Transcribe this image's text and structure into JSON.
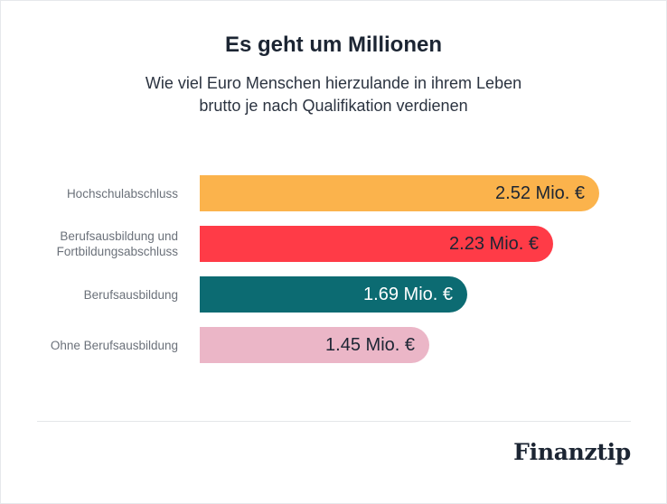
{
  "title": "Es geht um Millionen",
  "subtitle_line1": "Wie viel Euro Menschen hierzulande in ihrem Leben",
  "subtitle_line2": "brutto je nach Qualifikation verdienen",
  "brand": "Finanztip",
  "colors": {
    "hochschul": "#fbb34c",
    "berufsausbildung_fortbildung": "#ff3b47",
    "berufsausbildung": "#0c6b72",
    "ohne": "#ebb6c7",
    "value_dark": "#1c2533",
    "value_light": "#ffffff"
  },
  "chart_data": {
    "type": "bar",
    "orientation": "horizontal",
    "title": "Es geht um Millionen",
    "subtitle": "Wie viel Euro Menschen hierzulande in ihrem Leben brutto je nach Qualifikation verdienen",
    "categories": [
      [
        "Hochschulabschluss"
      ],
      [
        "Berufsausbildung und",
        "Fortbildungsabschluss"
      ],
      [
        "Berufsausbildung"
      ],
      [
        "Ohne Berufsausbildung"
      ]
    ],
    "values": [
      2.52,
      2.23,
      1.69,
      1.45
    ],
    "value_labels": [
      "2.52 Mio. €",
      "2.23 Mio. €",
      "1.69 Mio. €",
      "1.45 Mio. €"
    ],
    "unit": "Mio. €",
    "bar_colors": [
      "#fbb34c",
      "#ff3b47",
      "#0c6b72",
      "#ebb6c7"
    ],
    "label_colors": [
      "#1c2533",
      "#1c2533",
      "#ffffff",
      "#1c2533"
    ],
    "xlim": [
      0,
      2.52
    ],
    "grid": false,
    "legend": "none"
  }
}
